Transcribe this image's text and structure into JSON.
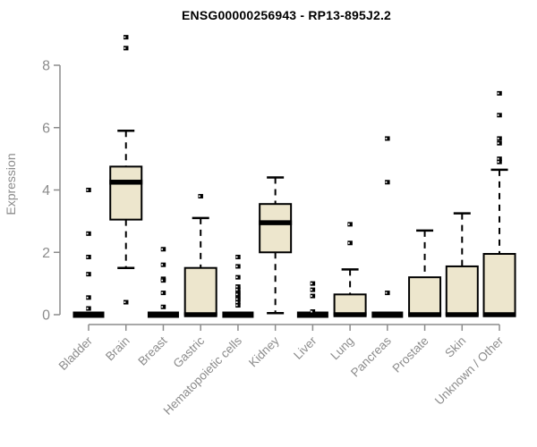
{
  "chart_data": {
    "type": "boxplot",
    "title": "ENSG00000256943 - RP13-895J2.2",
    "ylabel": "Expression",
    "xlabel": "",
    "ylim": [
      0,
      8
    ],
    "yticks": [
      0,
      2,
      4,
      6,
      8
    ],
    "grid": false,
    "legend": "none",
    "categories": [
      "Bladder",
      "Brain",
      "Breast",
      "Gastric",
      "Hematopoietic cells",
      "Kidney",
      "Liver",
      "Lung",
      "Pancreas",
      "Prostate",
      "Skin",
      "Unknown / Other"
    ],
    "series": [
      {
        "category": "Bladder",
        "q1": 0,
        "median": 0,
        "q3": 0,
        "whisker_low": 0,
        "whisker_high": 0,
        "outliers": [
          4.0,
          2.6,
          1.85,
          1.3,
          0.55,
          0.2
        ]
      },
      {
        "category": "Brain",
        "q1": 3.05,
        "median": 4.25,
        "q3": 4.75,
        "whisker_low": 1.5,
        "whisker_high": 5.9,
        "outliers": [
          8.9,
          8.55,
          0.4
        ]
      },
      {
        "category": "Breast",
        "q1": 0,
        "median": 0,
        "q3": 0,
        "whisker_low": 0,
        "whisker_high": 0,
        "outliers": [
          2.1,
          1.6,
          1.15,
          1.1,
          0.7,
          0.25
        ]
      },
      {
        "category": "Gastric",
        "q1": 0,
        "median": 0,
        "q3": 1.5,
        "whisker_low": 0,
        "whisker_high": 3.1,
        "outliers": [
          3.8
        ]
      },
      {
        "category": "Hematopoietic cells",
        "q1": 0,
        "median": 0,
        "q3": 0,
        "whisker_low": 0,
        "whisker_high": 0,
        "outliers": [
          1.85,
          1.55,
          1.2,
          0.9,
          0.8,
          0.7,
          0.65,
          0.55,
          0.5,
          0.4,
          0.3
        ]
      },
      {
        "category": "Kidney",
        "q1": 2.0,
        "median": 2.95,
        "q3": 3.55,
        "whisker_low": 0.05,
        "whisker_high": 4.4,
        "outliers": []
      },
      {
        "category": "Liver",
        "q1": 0,
        "median": 0,
        "q3": 0,
        "whisker_low": 0,
        "whisker_high": 0,
        "outliers": [
          1.0,
          0.8,
          0.6,
          0.1
        ]
      },
      {
        "category": "Lung",
        "q1": 0,
        "median": 0,
        "q3": 0.65,
        "whisker_low": 0,
        "whisker_high": 1.45,
        "outliers": [
          2.9,
          2.3
        ]
      },
      {
        "category": "Pancreas",
        "q1": 0,
        "median": 0,
        "q3": 0,
        "whisker_low": 0,
        "whisker_high": 0,
        "outliers": [
          5.65,
          4.25,
          0.7
        ]
      },
      {
        "category": "Prostate",
        "q1": 0,
        "median": 0,
        "q3": 1.2,
        "whisker_low": 0,
        "whisker_high": 2.7,
        "outliers": []
      },
      {
        "category": "Skin",
        "q1": 0,
        "median": 0,
        "q3": 1.55,
        "whisker_low": 0,
        "whisker_high": 3.25,
        "outliers": []
      },
      {
        "category": "Unknown / Other",
        "q1": 0,
        "median": 0,
        "q3": 1.95,
        "whisker_low": 0,
        "whisker_high": 4.65,
        "outliers": [
          7.1,
          6.4,
          5.65,
          5.5,
          5.0,
          4.9
        ]
      }
    ],
    "colors": {
      "box_fill": "#EDE6CD",
      "box_border": "#000000",
      "median": "#000000",
      "outlier": "#000000",
      "axis": "#8c8c8c",
      "tick_label": "#8c8c8c",
      "title": "#000000",
      "background": "#ffffff"
    }
  }
}
